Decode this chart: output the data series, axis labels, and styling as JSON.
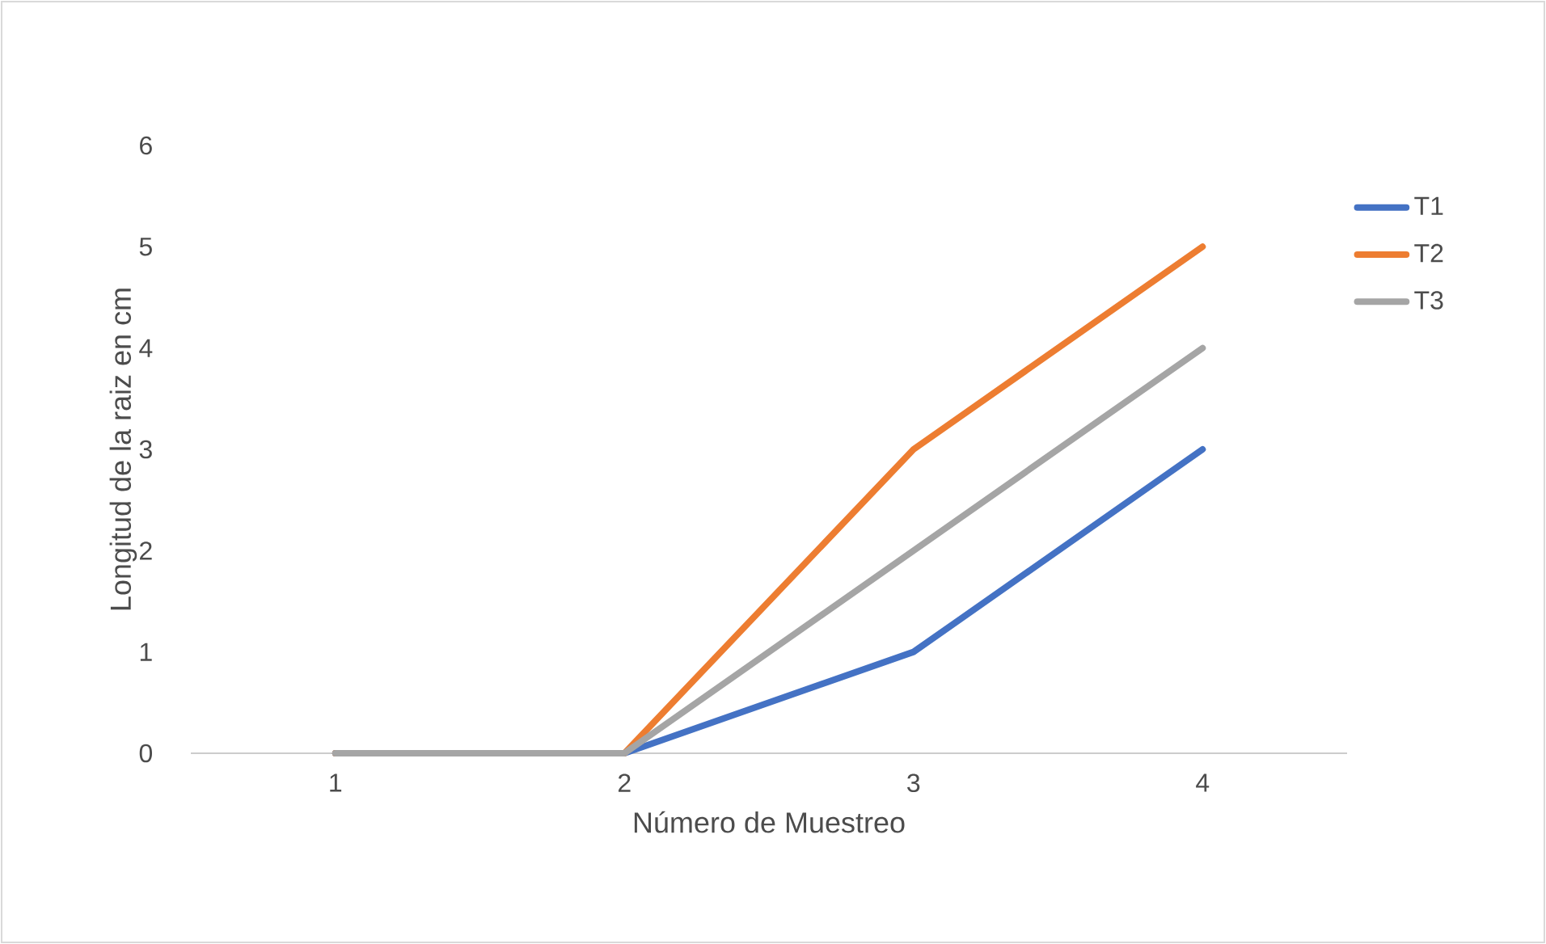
{
  "chart_data": {
    "type": "line",
    "xlabel": "Número de Muestreo",
    "ylabel": "Longitud de la raiz en cm",
    "categories": [
      "1",
      "2",
      "3",
      "4"
    ],
    "series": [
      {
        "name": "T1",
        "color": "#4472c4",
        "values": [
          0,
          0,
          1,
          3
        ]
      },
      {
        "name": "T2",
        "color": "#ed7d31",
        "values": [
          0,
          0,
          3,
          5
        ]
      },
      {
        "name": "T3",
        "color": "#a5a5a5",
        "values": [
          0,
          0,
          2,
          4
        ]
      }
    ],
    "ylim": [
      0,
      6
    ],
    "yticks": [
      0,
      1,
      2,
      3,
      4,
      5,
      6
    ],
    "legend": "right",
    "marker": "none",
    "line_style": "solid"
  }
}
